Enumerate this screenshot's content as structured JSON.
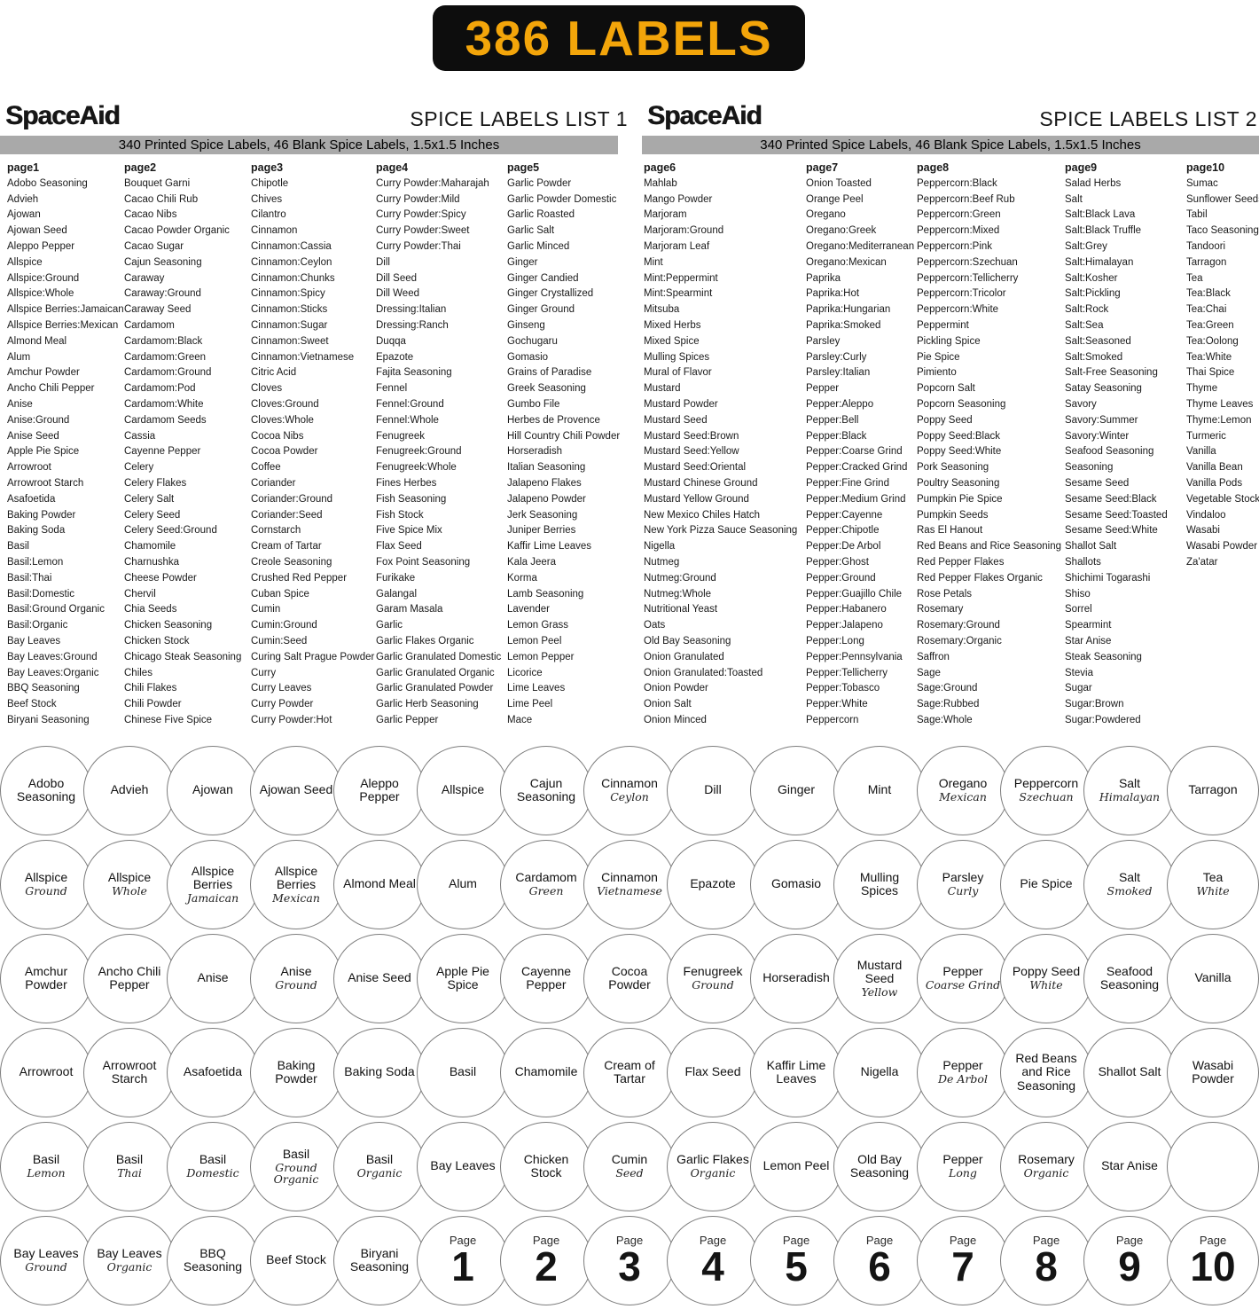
{
  "banner": {
    "text": "386 LABELS",
    "bg": "#0d0d0d",
    "fg": "#F3A50A"
  },
  "page_circle_word": "Page",
  "colors": {
    "subtitle_bar_bg": "#a9a9a9",
    "circle_border": "#7d7d7d"
  },
  "lists": [
    {
      "brand": "SpaceAid",
      "title": "SPICE LABELS LIST 1",
      "subtitle": "340 Printed Spice Labels, 46 Blank Spice Labels, 1.5x1.5 Inches",
      "pages": [
        {
          "name": "page1",
          "items": [
            "Adobo Seasoning",
            "Advieh",
            "Ajowan",
            "Ajowan Seed",
            "Aleppo Pepper",
            "Allspice",
            "Allspice:Ground",
            "Allspice:Whole",
            "Allspice Berries:Jamaican",
            "Allspice Berries:Mexican",
            "Almond Meal",
            "Alum",
            "Amchur Powder",
            "Ancho Chili Pepper",
            "Anise",
            "Anise:Ground",
            "Anise Seed",
            "Apple Pie Spice",
            "Arrowroot",
            "Arrowroot Starch",
            "Asafoetida",
            "Baking Powder",
            "Baking Soda",
            "Basil",
            "Basil:Lemon",
            "Basil:Thai",
            "Basil:Domestic",
            "Basil:Ground Organic",
            "Basil:Organic",
            "Bay Leaves",
            "Bay Leaves:Ground",
            "Bay Leaves:Organic",
            "BBQ Seasoning",
            "Beef Stock",
            "Biryani Seasoning"
          ]
        },
        {
          "name": "page2",
          "items": [
            "Bouquet Garni",
            "Cacao Chili Rub",
            "Cacao Nibs",
            "Cacao Powder Organic",
            "Cacao Sugar",
            "Cajun Seasoning",
            "Caraway",
            "Caraway:Ground",
            "Caraway Seed",
            "Cardamom",
            "Cardamom:Black",
            "Cardamom:Green",
            "Cardamom:Ground",
            "Cardamom:Pod",
            "Cardamom:White",
            "Cardamom Seeds",
            "Cassia",
            "Cayenne Pepper",
            "Celery",
            "Celery Flakes",
            "Celery Salt",
            "Celery Seed",
            "Celery Seed:Ground",
            "Chamomile",
            "Charnushka",
            "Cheese Powder",
            "Chervil",
            "Chia Seeds",
            "Chicken Seasoning",
            "Chicken Stock",
            "Chicago Steak Seasoning",
            "Chiles",
            "Chili Flakes",
            "Chili Powder",
            "Chinese Five Spice"
          ]
        },
        {
          "name": "page3",
          "items": [
            "Chipotle",
            "Chives",
            "Cilantro",
            "Cinnamon",
            "Cinnamon:Cassia",
            "Cinnamon:Ceylon",
            "Cinnamon:Chunks",
            "Cinnamon:Spicy",
            "Cinnamon:Sticks",
            "Cinnamon:Sugar",
            "Cinnamon:Sweet",
            "Cinnamon:Vietnamese",
            "Citric Acid",
            "Cloves",
            "Cloves:Ground",
            "Cloves:Whole",
            "Cocoa Nibs",
            "Cocoa Powder",
            "Coffee",
            "Coriander",
            "Coriander:Ground",
            "Coriander:Seed",
            "Cornstarch",
            "Cream of Tartar",
            "Creole Seasoning",
            "Crushed Red Pepper",
            "Cuban Spice",
            "Cumin",
            "Cumin:Ground",
            "Cumin:Seed",
            "Curing Salt Prague Powder",
            "Curry",
            "Curry Leaves",
            "Curry Powder",
            "Curry Powder:Hot"
          ]
        },
        {
          "name": "page4",
          "items": [
            "Curry Powder:Maharajah",
            "Curry Powder:Mild",
            "Curry Powder:Spicy",
            "Curry Powder:Sweet",
            "Curry Powder:Thai",
            "Dill",
            "Dill Seed",
            "Dill Weed",
            "Dressing:Italian",
            "Dressing:Ranch",
            "Duqqa",
            "Epazote",
            "Fajita Seasoning",
            "Fennel",
            "Fennel:Ground",
            "Fennel:Whole",
            "Fenugreek",
            "Fenugreek:Ground",
            "Fenugreek:Whole",
            "Fines Herbes",
            "Fish Seasoning",
            "Fish Stock",
            "Five Spice Mix",
            "Flax Seed",
            "Fox Point Seasoning",
            "Furikake",
            "Galangal",
            "Garam Masala",
            "Garlic",
            "Garlic Flakes Organic",
            "Garlic Granulated Domestic",
            "Garlic Granulated Organic",
            "Garlic Granulated Powder",
            "Garlic Herb Seasoning",
            "Garlic Pepper"
          ]
        },
        {
          "name": "page5",
          "items": [
            "Garlic Powder",
            "Garlic Powder Domestic",
            "Garlic Roasted",
            "Garlic Salt",
            "Garlic Minced",
            "Ginger",
            "Ginger Candied",
            "Ginger Crystallized",
            "Ginger Ground",
            "Ginseng",
            "Gochugaru",
            "Gomasio",
            "Grains of Paradise",
            "Greek Seasoning",
            "Gumbo File",
            "Herbes de Provence",
            "Hill Country Chili Powder",
            "Horseradish",
            "Italian Seasoning",
            "Jalapeno Flakes",
            "Jalapeno Powder",
            "Jerk Seasoning",
            "Juniper Berries",
            "Kaffir Lime Leaves",
            "Kala Jeera",
            "Korma",
            "Lamb Seasoning",
            "Lavender",
            "Lemon Grass",
            "Lemon Peel",
            "Lemon Pepper",
            "Licorice",
            "Lime Leaves",
            "Lime Peel",
            "Mace"
          ]
        }
      ]
    },
    {
      "brand": "SpaceAid",
      "title": "SPICE LABELS LIST 2",
      "subtitle": "340 Printed Spice Labels, 46 Blank Spice Labels, 1.5x1.5 Inches",
      "pages": [
        {
          "name": "page6",
          "items": [
            "Mahlab",
            "Mango Powder",
            "Marjoram",
            "Marjoram:Ground",
            "Marjoram Leaf",
            "Mint",
            "Mint:Peppermint",
            "Mint:Spearmint",
            "Mitsuba",
            "Mixed Herbs",
            "Mixed Spice",
            "Mulling Spices",
            "Mural of Flavor",
            "Mustard",
            "Mustard Powder",
            "Mustard Seed",
            "Mustard Seed:Brown",
            "Mustard Seed:Yellow",
            "Mustard Seed:Oriental",
            "Mustard Chinese Ground",
            "Mustard Yellow Ground",
            "New Mexico Chiles Hatch",
            "New York Pizza Sauce Seasoning",
            "Nigella",
            "Nutmeg",
            "Nutmeg:Ground",
            "Nutmeg:Whole",
            "Nutritional Yeast",
            "Oats",
            "Old Bay Seasoning",
            "Onion Granulated",
            "Onion Granulated:Toasted",
            "Onion Powder",
            "Onion Salt",
            "Onion Minced"
          ]
        },
        {
          "name": "page7",
          "items": [
            "Onion Toasted",
            "Orange Peel",
            "Oregano",
            "Oregano:Greek",
            "Oregano:Mediterranean",
            "Oregano:Mexican",
            "Paprika",
            "Paprika:Hot",
            "Paprika:Hungarian",
            "Paprika:Smoked",
            "Parsley",
            "Parsley:Curly",
            "Parsley:Italian",
            "Pepper",
            "Pepper:Aleppo",
            "Pepper:Bell",
            "Pepper:Black",
            "Pepper:Coarse Grind",
            "Pepper:Cracked Grind",
            "Pepper:Fine Grind",
            "Pepper:Medium Grind",
            "Pepper:Cayenne",
            "Pepper:Chipotle",
            "Pepper:De Arbol",
            "Pepper:Ghost",
            "Pepper:Ground",
            "Pepper:Guajillo Chile",
            "Pepper:Habanero",
            "Pepper:Jalapeno",
            "Pepper:Long",
            "Pepper:Pennsylvania",
            "Pepper:Tellicherry",
            "Pepper:Tobasco",
            "Pepper:White",
            "Peppercorn"
          ]
        },
        {
          "name": "page8",
          "items": [
            "Peppercorn:Black",
            "Peppercorn:Beef Rub",
            "Peppercorn:Green",
            "Peppercorn:Mixed",
            "Peppercorn:Pink",
            "Peppercorn:Szechuan",
            "Peppercorn:Tellicherry",
            "Peppercorn:Tricolor",
            "Peppercorn:White",
            "Peppermint",
            "Pickling Spice",
            "Pie Spice",
            "Pimiento",
            "Popcorn Salt",
            "Popcorn Seasoning",
            "Poppy Seed",
            "Poppy Seed:Black",
            "Poppy Seed:White",
            "Pork Seasoning",
            "Poultry Seasoning",
            "Pumpkin Pie Spice",
            "Pumpkin Seeds",
            "Ras El Hanout",
            "Red Beans and Rice Seasoning",
            "Red Pepper Flakes",
            "Red Pepper Flakes Organic",
            "Rose Petals",
            "Rosemary",
            "Rosemary:Ground",
            "Rosemary:Organic",
            "Saffron",
            "Sage",
            "Sage:Ground",
            "Sage:Rubbed",
            "Sage:Whole"
          ]
        },
        {
          "name": "page9",
          "items": [
            "Salad Herbs",
            "Salt",
            "Salt:Black Lava",
            "Salt:Black Truffle",
            "Salt:Grey",
            "Salt:Himalayan",
            "Salt:Kosher",
            "Salt:Pickling",
            "Salt:Rock",
            "Salt:Sea",
            "Salt:Seasoned",
            "Salt:Smoked",
            "Salt-Free Seasoning",
            "Satay Seasoning",
            "Savory",
            "Savory:Summer",
            "Savory:Winter",
            "Seafood Seasoning",
            "Seasoning",
            "Sesame Seed",
            "Sesame Seed:Black",
            "Sesame Seed:Toasted",
            "Sesame Seed:White",
            "Shallot Salt",
            "Shallots",
            "Shichimi Togarashi",
            "Shiso",
            "Sorrel",
            "Spearmint",
            "Star Anise",
            "Steak Seasoning",
            "Stevia",
            "Sugar",
            "Sugar:Brown",
            "Sugar:Powdered"
          ]
        },
        {
          "name": "page10",
          "items": [
            "Sumac",
            "Sunflower Seeds",
            "Tabil",
            "Taco Seasoning",
            "Tandoori",
            "Tarragon",
            "Tea",
            "Tea:Black",
            "Tea:Chai",
            "Tea:Green",
            "Tea:Oolong",
            "Tea:White",
            "Thai Spice",
            "Thyme",
            "Thyme Leaves",
            "Thyme:Lemon",
            "Turmeric",
            "Vanilla",
            "Vanilla Bean",
            "Vanilla Pods",
            "Vegetable Stock",
            "Vindaloo",
            "Wasabi",
            "Wasabi Powder",
            "Za'atar"
          ]
        }
      ]
    }
  ],
  "circle_rows": [
    [
      {
        "t": "Adobo Seasoning"
      },
      {
        "t": "Advieh"
      },
      {
        "t": "Ajowan"
      },
      {
        "t": "Ajowan Seed"
      },
      {
        "t": "Aleppo Pepper"
      },
      {
        "t": "Allspice"
      },
      {
        "t": "Cajun Seasoning"
      },
      {
        "t": "Cinnamon",
        "s": "Ceylon"
      },
      {
        "t": "Dill"
      },
      {
        "t": "Ginger"
      },
      {
        "t": "Mint"
      },
      {
        "t": "Oregano",
        "s": "Mexican"
      },
      {
        "t": "Peppercorn",
        "s": "Szechuan"
      },
      {
        "t": "Salt",
        "s": "Himalayan"
      },
      {
        "t": "Tarragon"
      }
    ],
    [
      {
        "t": "Allspice",
        "s": "Ground"
      },
      {
        "t": "Allspice",
        "s": "Whole"
      },
      {
        "t": "Allspice Berries",
        "s": "Jamaican"
      },
      {
        "t": "Allspice Berries",
        "s": "Mexican"
      },
      {
        "t": "Almond Meal"
      },
      {
        "t": "Alum"
      },
      {
        "t": "Cardamom",
        "s": "Green"
      },
      {
        "t": "Cinnamon",
        "s": "Vietnamese"
      },
      {
        "t": "Epazote"
      },
      {
        "t": "Gomasio"
      },
      {
        "t": "Mulling Spices"
      },
      {
        "t": "Parsley",
        "s": "Curly"
      },
      {
        "t": "Pie Spice"
      },
      {
        "t": "Salt",
        "s": "Smoked"
      },
      {
        "t": "Tea",
        "s": "White"
      }
    ],
    [
      {
        "t": "Amchur Powder"
      },
      {
        "t": "Ancho Chili Pepper"
      },
      {
        "t": "Anise"
      },
      {
        "t": "Anise",
        "s": "Ground"
      },
      {
        "t": "Anise Seed"
      },
      {
        "t": "Apple Pie Spice"
      },
      {
        "t": "Cayenne Pepper"
      },
      {
        "t": "Cocoa Powder"
      },
      {
        "t": "Fenugreek",
        "s": "Ground"
      },
      {
        "t": "Horseradish"
      },
      {
        "t": "Mustard Seed",
        "s": "Yellow"
      },
      {
        "t": "Pepper",
        "s": "Coarse Grind"
      },
      {
        "t": "Poppy Seed",
        "s": "White"
      },
      {
        "t": "Seafood Seasoning"
      },
      {
        "t": "Vanilla"
      }
    ],
    [
      {
        "t": "Arrowroot"
      },
      {
        "t": "Arrowroot Starch"
      },
      {
        "t": "Asafoetida"
      },
      {
        "t": "Baking Powder"
      },
      {
        "t": "Baking Soda"
      },
      {
        "t": "Basil"
      },
      {
        "t": "Chamomile"
      },
      {
        "t": "Cream of Tartar"
      },
      {
        "t": "Flax Seed"
      },
      {
        "t": "Kaffir Lime Leaves"
      },
      {
        "t": "Nigella"
      },
      {
        "t": "Pepper",
        "s": "De Arbol"
      },
      {
        "t": "Red Beans and Rice Seasoning"
      },
      {
        "t": "Shallot Salt"
      },
      {
        "t": "Wasabi Powder"
      }
    ],
    [
      {
        "t": "Basil",
        "s": "Lemon"
      },
      {
        "t": "Basil",
        "s": "Thai"
      },
      {
        "t": "Basil",
        "s": "Domestic"
      },
      {
        "t": "Basil",
        "s": "Ground Organic"
      },
      {
        "t": "Basil",
        "s": "Organic"
      },
      {
        "t": "Bay Leaves"
      },
      {
        "t": "Chicken Stock"
      },
      {
        "t": "Cumin",
        "s": "Seed"
      },
      {
        "t": "Garlic Flakes",
        "s": "Organic"
      },
      {
        "t": "Lemon Peel"
      },
      {
        "t": "Old Bay Seasoning"
      },
      {
        "t": "Pepper",
        "s": "Long"
      },
      {
        "t": "Rosemary",
        "s": "Organic"
      },
      {
        "t": "Star Anise"
      },
      {
        "blank": true
      }
    ],
    [
      {
        "t": "Bay Leaves",
        "s": "Ground"
      },
      {
        "t": "Bay Leaves",
        "s": "Organic"
      },
      {
        "t": "BBQ Seasoning"
      },
      {
        "t": "Beef Stock"
      },
      {
        "t": "Biryani Seasoning"
      },
      {
        "page": "1"
      },
      {
        "page": "2"
      },
      {
        "page": "3"
      },
      {
        "page": "4"
      },
      {
        "page": "5"
      },
      {
        "page": "6"
      },
      {
        "page": "7"
      },
      {
        "page": "8"
      },
      {
        "page": "9"
      },
      {
        "page": "10"
      }
    ]
  ]
}
